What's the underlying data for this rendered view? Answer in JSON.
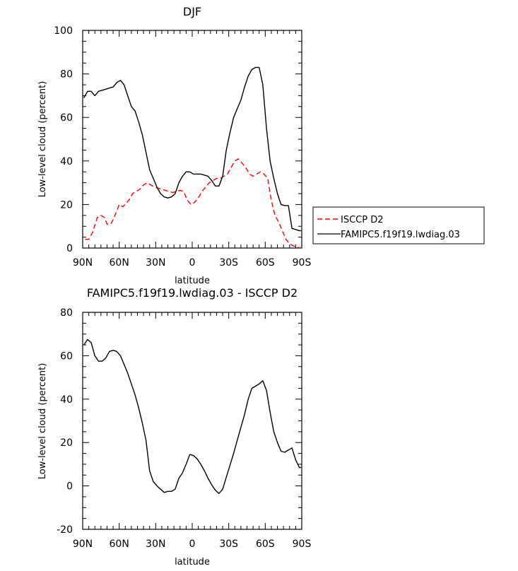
{
  "chart_data": [
    {
      "type": "line",
      "title": "DJF",
      "xlabel": "latitude",
      "ylabel": "Low-level cloud (percent)",
      "xlim": [
        90,
        -90
      ],
      "ylim": [
        0,
        100
      ],
      "x_ticks": [
        90,
        60,
        30,
        0,
        -30,
        -60,
        -90
      ],
      "x_tick_labels": [
        "90N",
        "60N",
        "30N",
        "0",
        "30S",
        "60S",
        "90S"
      ],
      "y_ticks": [
        0,
        20,
        40,
        60,
        80,
        100
      ],
      "legend": "outside-right",
      "series": [
        {
          "name": "ISCCP D2",
          "color": "#ff0000",
          "dash": "dashed",
          "x": [
            88,
            85,
            82,
            78,
            75,
            72,
            70,
            67,
            65,
            62,
            60,
            57,
            55,
            52,
            49,
            46,
            43,
            40,
            37,
            34,
            31,
            28,
            25,
            22,
            19,
            16,
            13,
            10,
            7,
            4,
            1,
            -2,
            -5,
            -8,
            -11,
            -14,
            -17,
            -20,
            -23,
            -26,
            -29,
            -32,
            -35,
            -38,
            -41,
            -44,
            -47,
            -50,
            -53,
            -56,
            -59,
            -62,
            -65,
            -68,
            -71,
            -74,
            -77,
            -80,
            -83,
            -86,
            -89
          ],
          "y": [
            4,
            4,
            7,
            14,
            15,
            14,
            11,
            11,
            13,
            17,
            20,
            19,
            20,
            22,
            25,
            26,
            27,
            29,
            30,
            29,
            28,
            27.5,
            27,
            26.5,
            26,
            25.5,
            26,
            26.5,
            26,
            22,
            20,
            21,
            23,
            26,
            28,
            30,
            31,
            32,
            32,
            33,
            34,
            37,
            40,
            41,
            39,
            37,
            34,
            33,
            34,
            35,
            34,
            32,
            22,
            15,
            12,
            8,
            4,
            2,
            1,
            0.5,
            0
          ]
        },
        {
          "name": "FAMIPC5.f19f19.lwdiag.03",
          "color": "#000000",
          "dash": "solid",
          "x": [
            89,
            86,
            83,
            80,
            77,
            74,
            71,
            68,
            65,
            62,
            59,
            56,
            53,
            50,
            47,
            44,
            41,
            38,
            35,
            32,
            29,
            26,
            23,
            20,
            17,
            14,
            11,
            8,
            5,
            2,
            -1,
            -4,
            -7,
            -10,
            -13,
            -16,
            -19,
            -22,
            -25,
            -28,
            -31,
            -34,
            -37,
            -40,
            -43,
            -46,
            -49,
            -52,
            -55,
            -58,
            -61,
            -64,
            -67,
            -70,
            -73,
            -76,
            -79,
            -82,
            -85,
            -88,
            -89.5
          ],
          "y": [
            69,
            72,
            72,
            70,
            72,
            72.5,
            73,
            73.5,
            74,
            76,
            77,
            75,
            70,
            65,
            63,
            58,
            52,
            44,
            36,
            32,
            28,
            25,
            23.5,
            23,
            23.5,
            25,
            30,
            33,
            35,
            35,
            34,
            34,
            34,
            33.5,
            33,
            31,
            28.5,
            28.5,
            33,
            45,
            53,
            60,
            64,
            68,
            74,
            79,
            82,
            83,
            83,
            75,
            55,
            40,
            32,
            25,
            20,
            19.5,
            19.5,
            9,
            8.5,
            8,
            8
          ]
        }
      ]
    },
    {
      "type": "line",
      "title": "FAMIPC5.f19f19.lwdiag.03 - ISCCP D2",
      "xlabel": "latitude",
      "ylabel": "Low-level cloud (percent)",
      "xlim": [
        90,
        -90
      ],
      "ylim": [
        -20,
        80
      ],
      "x_ticks": [
        90,
        60,
        30,
        0,
        -30,
        -60,
        -90
      ],
      "x_tick_labels": [
        "90N",
        "60N",
        "30N",
        "0",
        "30S",
        "60S",
        "90S"
      ],
      "y_ticks": [
        -20,
        0,
        20,
        40,
        60,
        80
      ],
      "series": [
        {
          "color": "#000000",
          "dash": "solid",
          "x": [
            89,
            86,
            83,
            80,
            77,
            74,
            71,
            68,
            65,
            62,
            59,
            56,
            53,
            50,
            47,
            44,
            41,
            38,
            35,
            32,
            29,
            26,
            23,
            20,
            17,
            14,
            11,
            8,
            5,
            2,
            -1,
            -4,
            -7,
            -10,
            -13,
            -16,
            -19,
            -22,
            -25,
            -28,
            -31,
            -34,
            -37,
            -40,
            -43,
            -46,
            -49,
            -52,
            -55,
            -58,
            -61,
            -64,
            -67,
            -70,
            -73,
            -76,
            -79,
            -82,
            -85,
            -88,
            -89.5
          ],
          "y": [
            65,
            67.5,
            66,
            60,
            57.5,
            57.5,
            59,
            62,
            62.5,
            62,
            60,
            56,
            52,
            47,
            42,
            36,
            29,
            21,
            7,
            2,
            0,
            -1.5,
            -3,
            -2.5,
            -2.5,
            -1.5,
            3.5,
            6,
            10,
            14.5,
            14,
            12.5,
            10,
            7,
            3.5,
            0.5,
            -2,
            -3.5,
            -1.5,
            4,
            9.5,
            15,
            21,
            27,
            33,
            40,
            45,
            46,
            47,
            48.5,
            44,
            34,
            25,
            20,
            16,
            15.5,
            16.5,
            17.5,
            12,
            8.5,
            8.5
          ]
        }
      ]
    }
  ]
}
